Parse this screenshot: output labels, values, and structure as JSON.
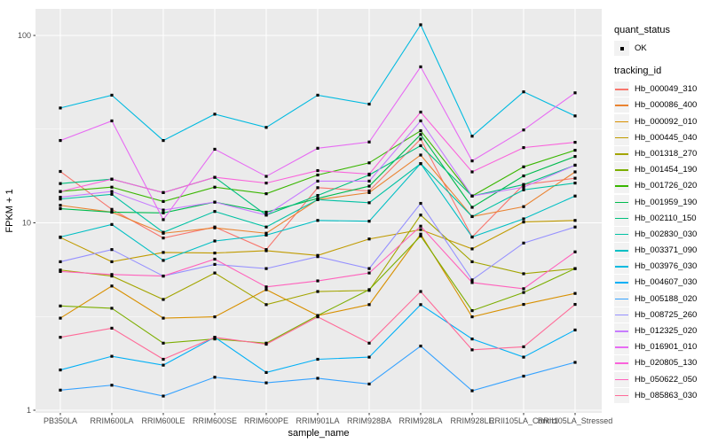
{
  "legend": {
    "quant_status_title": "quant_status",
    "quant_status_items": [
      {
        "label": "OK",
        "glyph": "point"
      }
    ],
    "tracking_id_title": "tracking_id"
  },
  "chart_data": {
    "type": "line",
    "title": "",
    "xlabel": "sample_name",
    "ylabel": "FPKM + 1",
    "y_scale": "log10",
    "y_major_ticks": [
      1,
      10,
      100
    ],
    "y_minor_ticks": [
      3.1623,
      31.623
    ],
    "ylim": [
      0.97,
      140
    ],
    "grid": "on",
    "legend_position": "right",
    "panel_bg": "#EBEBEB",
    "grid_color": "#FFFFFF",
    "tick_text_color": "#4D4D4D",
    "axis_title_color": "#000000",
    "point_color": "#000000",
    "point_shape": "square",
    "categories": [
      "PB350LA",
      "RRIM600LA",
      "RRIM600LE",
      "RRIM600SE",
      "RRIM600PE",
      "RRIM901LA",
      "RRIM928BA",
      "RRIM928LA",
      "RRIM928LE",
      "RRII105LA_Control",
      "RRII105LA_Stressed"
    ],
    "series": [
      {
        "name": "Hb_000049_310",
        "color": "#F8766D",
        "values": [
          18.8,
          11.8,
          8.3,
          9.5,
          7.2,
          15.4,
          14.8,
          28,
          8.4,
          16,
          17.3
        ]
      },
      {
        "name": "Hb_000086_400",
        "color": "#EA8331",
        "values": [
          12.4,
          11.4,
          8.8,
          9.4,
          8.8,
          13.3,
          14.5,
          23,
          10.8,
          12.2,
          18.7
        ]
      },
      {
        "name": "Hb_000092_010",
        "color": "#D89000",
        "values": [
          3.1,
          4.6,
          3.1,
          3.15,
          4.4,
          3.2,
          3.66,
          8.7,
          3.15,
          3.67,
          4.2
        ]
      },
      {
        "name": "Hb_000445_040",
        "color": "#C09B00",
        "values": [
          8.35,
          6.2,
          6.95,
          6.9,
          7.1,
          6.7,
          8.2,
          9.2,
          7.26,
          10.1,
          10.3
        ]
      },
      {
        "name": "Hb_001318_270",
        "color": "#A3A500",
        "values": [
          5.6,
          5.2,
          3.9,
          5.4,
          3.66,
          4.3,
          4.36,
          11,
          6.2,
          5.35,
          5.7
        ]
      },
      {
        "name": "Hb_001454_190",
        "color": "#7CAE00",
        "values": [
          3.6,
          3.5,
          2.28,
          2.4,
          2.28,
          3.2,
          4.4,
          8.5,
          3.4,
          4.25,
          5.7
        ]
      },
      {
        "name": "Hb_001726_020",
        "color": "#39B600",
        "values": [
          14.7,
          15.5,
          13,
          15.5,
          14.3,
          18,
          20.9,
          31,
          13.9,
          19.9,
          24.4
        ]
      },
      {
        "name": "Hb_001959_190",
        "color": "#00BB4E",
        "values": [
          11.9,
          11.4,
          11.3,
          12.9,
          11.4,
          13.5,
          15.7,
          29.6,
          12.1,
          17.8,
          22.6
        ]
      },
      {
        "name": "Hb_002110_150",
        "color": "#00BF7D",
        "values": [
          16.2,
          17.1,
          14.5,
          17.5,
          11,
          14,
          18,
          25.8,
          13.9,
          16,
          20.3
        ]
      },
      {
        "name": "Hb_002830_030",
        "color": "#00C1A3",
        "values": [
          13.4,
          14.2,
          8.9,
          11.5,
          9.5,
          13.3,
          12.8,
          20.7,
          10.8,
          15,
          16.3
        ]
      },
      {
        "name": "Hb_003371_090",
        "color": "#00BFC4",
        "values": [
          8.4,
          9.8,
          6.3,
          8,
          8.6,
          10.3,
          10.2,
          20.7,
          8.4,
          10.5,
          13.9
        ]
      },
      {
        "name": "Hb_003976_030",
        "color": "#00BAE0",
        "values": [
          41,
          48,
          27.5,
          38,
          32.3,
          48,
          43,
          114,
          29,
          50,
          37.2
        ]
      },
      {
        "name": "Hb_004607_030",
        "color": "#00B0F6",
        "values": [
          1.64,
          1.94,
          1.74,
          2.45,
          1.59,
          1.87,
          1.92,
          3.66,
          2.4,
          1.92,
          2.68
        ]
      },
      {
        "name": "Hb_005188_020",
        "color": "#35A2FF",
        "values": [
          1.28,
          1.36,
          1.19,
          1.5,
          1.4,
          1.48,
          1.38,
          2.2,
          1.27,
          1.52,
          1.8
        ]
      },
      {
        "name": "Hb_008725_260",
        "color": "#9590FF",
        "values": [
          6.2,
          7.2,
          5.2,
          6,
          5.7,
          6.6,
          5.7,
          12.7,
          4.96,
          7.8,
          9.5
        ]
      },
      {
        "name": "Hb_012325_020",
        "color": "#C77CFF",
        "values": [
          13.7,
          14.7,
          11.7,
          12.9,
          11,
          16.7,
          16.7,
          35,
          13.9,
          15.5,
          20.3
        ]
      },
      {
        "name": "Hb_016901_010",
        "color": "#E76BF3",
        "values": [
          27.5,
          35,
          10.4,
          24.7,
          17.7,
          25,
          27,
          68,
          21.4,
          31.3,
          49.4
        ]
      },
      {
        "name": "Hb_020805_130",
        "color": "#FA62DB",
        "values": [
          14.7,
          17.1,
          14.5,
          17.5,
          16.3,
          19,
          18.2,
          39,
          18.7,
          25.2,
          26.9
        ]
      },
      {
        "name": "Hb_050622_050",
        "color": "#FF62BC",
        "values": [
          5.5,
          5.3,
          5.2,
          6.4,
          4.55,
          4.9,
          5.4,
          9.6,
          4.8,
          4.45,
          7
        ]
      },
      {
        "name": "Hb_085863_030",
        "color": "#FF6A98",
        "values": [
          2.45,
          2.74,
          1.87,
          2.45,
          2.25,
          3.15,
          2.28,
          4.3,
          2.1,
          2.18,
          3.67
        ]
      }
    ]
  }
}
